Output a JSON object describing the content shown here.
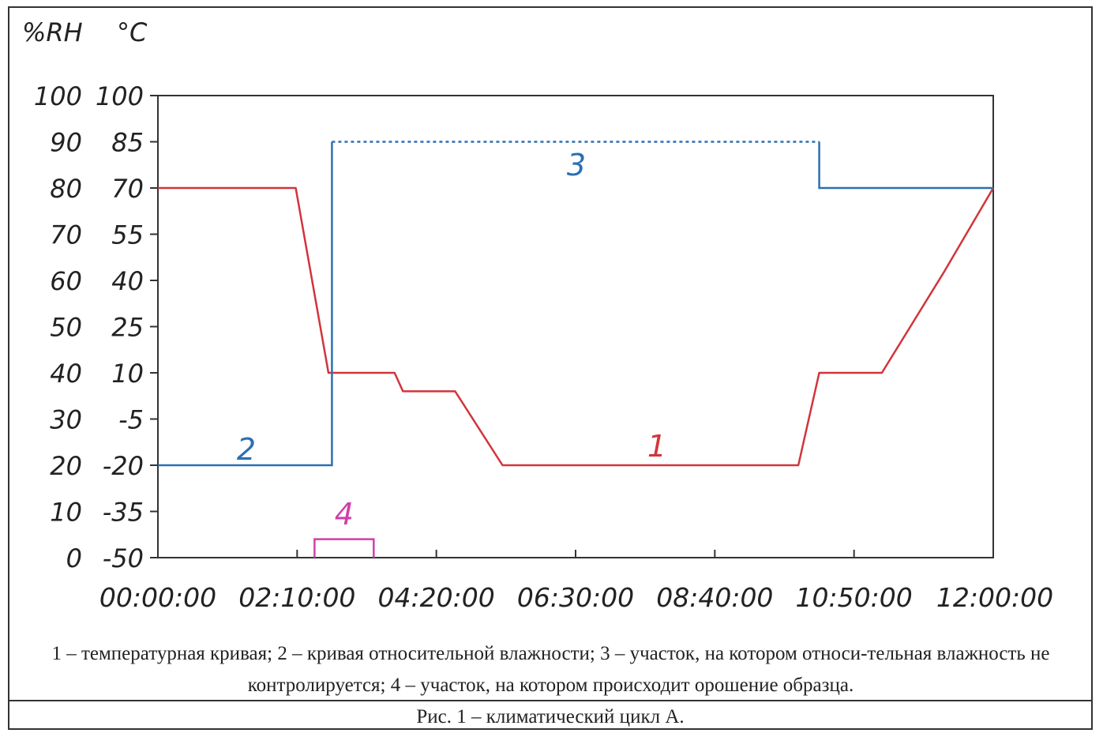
{
  "chart_data": {
    "type": "line",
    "units": {
      "left": "%RH",
      "right": "°C"
    },
    "x_ticks": [
      "00:00:00",
      "02:10:00",
      "04:20:00",
      "06:30:00",
      "08:40:00",
      "10:50:00",
      "12:00:00"
    ],
    "xlim_hours": [
      0,
      12
    ],
    "y_rh_ticks": [
      "100",
      "90",
      "80",
      "70",
      "60",
      "50",
      "40",
      "30",
      "20",
      "10",
      "0"
    ],
    "y_temp_ticks": [
      "100",
      "85",
      "70",
      "55",
      "40",
      "25",
      "10",
      "-5",
      "-20",
      "-35",
      "-50"
    ],
    "ylim_temp": [
      -50,
      100
    ],
    "series": [
      {
        "name": "1",
        "color": "#d2343c",
        "style": "solid",
        "x_hours": [
          0,
          1.98,
          2.45,
          3.4,
          3.52,
          4.27,
          4.95,
          9.2,
          9.5,
          10.4,
          11.3,
          12
        ],
        "y_temp": [
          70,
          70,
          10,
          10,
          4,
          4,
          -20,
          -20,
          10,
          10,
          43,
          70
        ]
      },
      {
        "name": "2",
        "color": "#2c6fb3",
        "style": "solid",
        "x_hours": [
          0,
          2.5,
          2.5
        ],
        "y_rh": [
          20,
          20,
          40
        ]
      },
      {
        "name": "3",
        "color": "#2c6fb3",
        "style": "mixed",
        "segments": [
          {
            "style": "solid",
            "x_hours": [
              2.5,
              2.5
            ],
            "y_rh": [
              40,
              90
            ]
          },
          {
            "style": "dotted",
            "x_hours": [
              2.5,
              9.5
            ],
            "y_rh": [
              90,
              90
            ]
          },
          {
            "style": "solid",
            "x_hours": [
              9.5,
              9.5,
              12
            ],
            "y_rh": [
              90,
              80,
              80
            ]
          }
        ]
      },
      {
        "name": "4",
        "color": "#d040a8",
        "type": "bracket",
        "x_hours": [
          2.25,
          3.1
        ],
        "height_rh": 4
      }
    ]
  },
  "legend_text": "1 – температурная кривая; 2 – кривая относительной влажности; 3 – участок, на котором относи-тельная влажность не контролируется; 4 – участок, на котором происходит орошение образца.",
  "caption": "Рис. 1 – климатический цикл А."
}
